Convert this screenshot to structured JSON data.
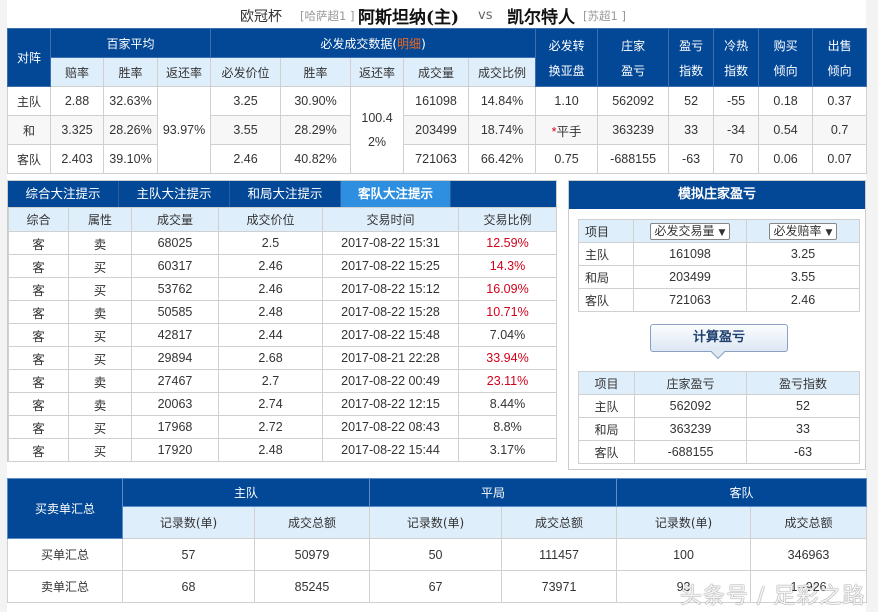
{
  "title": {
    "cup": "欧冠杯",
    "home_league": "[哈萨超1 ]",
    "home_team": "阿斯坦纳(主)",
    "vs": "vs",
    "away_team": "凯尔特人",
    "away_league": "[苏超1 ]"
  },
  "top_table": {
    "headers": {
      "matchup": "对阵",
      "avg_group": "百家平均",
      "avg_cols": [
        "赔率",
        "胜率",
        "返还率"
      ],
      "bf_group_prefix": "必发成交数据(",
      "bf_group_link": "明细",
      "bf_group_suffix": ")",
      "bf_cols": [
        "必发价位",
        "胜率",
        "返还率",
        "成交量",
        "成交比例"
      ],
      "convert": [
        "必发转",
        "换亚盘"
      ],
      "banker": [
        "庄家",
        "盈亏"
      ],
      "pl_index": [
        "盈亏",
        "指数"
      ],
      "hot_index": [
        "冷热",
        "指数"
      ],
      "buy": [
        "购买",
        "倾向"
      ],
      "sell": [
        "出售",
        "倾向"
      ]
    },
    "avg_return": "93.97%",
    "bf_return": [
      "100.4",
      "2%"
    ],
    "rows": [
      {
        "side": "主队",
        "odds": "2.88",
        "win": "32.63%",
        "bf_price": "3.25",
        "bf_win": "30.90%",
        "volume": "161098",
        "ratio": "14.84%",
        "asian": "1.10",
        "asian_star": "",
        "banker": "562092",
        "pl": "52",
        "hot": "-55",
        "buy": "0.18",
        "sell": "0.37"
      },
      {
        "side": "和",
        "odds": "3.325",
        "win": "28.26%",
        "bf_price": "3.55",
        "bf_win": "28.29%",
        "volume": "203499",
        "ratio": "18.74%",
        "asian": "平手",
        "asian_star": "*",
        "banker": "363239",
        "pl": "33",
        "hot": "-34",
        "buy": "0.54",
        "sell": "0.7"
      },
      {
        "side": "客队",
        "odds": "2.403",
        "win": "39.10%",
        "bf_price": "2.46",
        "bf_win": "40.82%",
        "volume": "721063",
        "ratio": "66.42%",
        "asian": "0.75",
        "asian_star": "",
        "banker": "-688155",
        "pl": "-63",
        "hot": "70",
        "buy": "0.06",
        "sell": "0.07"
      }
    ]
  },
  "tabs": {
    "items": [
      "综合大注提示",
      "主队大注提示",
      "和局大注提示",
      "客队大注提示"
    ],
    "active_index": 3
  },
  "trades": {
    "columns": [
      "综合",
      "属性",
      "成交量",
      "成交价位",
      "交易时间",
      "交易比例"
    ],
    "rows": [
      {
        "side": "客",
        "type": "卖",
        "volume": "68025",
        "price": "2.5",
        "time": "2017-08-22 15:31",
        "ratio": "12.59%",
        "highlight": true
      },
      {
        "side": "客",
        "type": "买",
        "volume": "60317",
        "price": "2.46",
        "time": "2017-08-22 15:25",
        "ratio": "14.3%",
        "highlight": true
      },
      {
        "side": "客",
        "type": "买",
        "volume": "53762",
        "price": "2.46",
        "time": "2017-08-22 15:12",
        "ratio": "16.09%",
        "highlight": true
      },
      {
        "side": "客",
        "type": "卖",
        "volume": "50585",
        "price": "2.48",
        "time": "2017-08-22 15:28",
        "ratio": "10.71%",
        "highlight": true
      },
      {
        "side": "客",
        "type": "买",
        "volume": "42817",
        "price": "2.44",
        "time": "2017-08-22 15:48",
        "ratio": "7.04%",
        "highlight": false
      },
      {
        "side": "客",
        "type": "买",
        "volume": "29894",
        "price": "2.68",
        "time": "2017-08-21 22:28",
        "ratio": "33.94%",
        "highlight": true
      },
      {
        "side": "客",
        "type": "卖",
        "volume": "27467",
        "price": "2.7",
        "time": "2017-08-22 00:49",
        "ratio": "23.11%",
        "highlight": true
      },
      {
        "side": "客",
        "type": "卖",
        "volume": "20063",
        "price": "2.74",
        "time": "2017-08-22 12:15",
        "ratio": "8.44%",
        "highlight": false
      },
      {
        "side": "客",
        "type": "买",
        "volume": "17968",
        "price": "2.72",
        "time": "2017-08-22 08:43",
        "ratio": "8.8%",
        "highlight": false
      },
      {
        "side": "客",
        "type": "买",
        "volume": "17920",
        "price": "2.48",
        "time": "2017-08-22 15:44",
        "ratio": "3.17%",
        "highlight": false
      }
    ],
    "highlight_color": "#d0021b"
  },
  "simulate": {
    "title": "模拟庄家盈亏",
    "input_table": {
      "item_label": "项目",
      "volume_select": "必发交易量",
      "odds_select": "必发赔率",
      "rows": [
        {
          "label": "主队",
          "volume": "161098",
          "odds": "3.25"
        },
        {
          "label": "和局",
          "volume": "203499",
          "odds": "3.55"
        },
        {
          "label": "客队",
          "volume": "721063",
          "odds": "2.46"
        }
      ]
    },
    "calc_button": "计算盈亏",
    "result_table": {
      "columns": [
        "项目",
        "庄家盈亏",
        "盈亏指数"
      ],
      "rows": [
        {
          "label": "主队",
          "banker": "562092",
          "index": "52"
        },
        {
          "label": "和局",
          "banker": "363239",
          "index": "33"
        },
        {
          "label": "客队",
          "banker": "-688155",
          "index": "-63"
        }
      ]
    }
  },
  "summary": {
    "title": "买卖单汇总",
    "groups": [
      "主队",
      "平局",
      "客队"
    ],
    "sub_cols": [
      "记录数(单)",
      "成交总额"
    ],
    "rows": [
      {
        "label": "买单汇总",
        "values": [
          "57",
          "50979",
          "50",
          "111457",
          "100",
          "346963"
        ]
      },
      {
        "label": "卖单汇总",
        "values": [
          "68",
          "85245",
          "67",
          "73971",
          "93",
          "1··926"
        ]
      }
    ]
  },
  "watermark": "头条号 / 足彩之路",
  "colors": {
    "header_blue": "#034797",
    "active_tab": "#2e8fe0",
    "subheader_bg": "#dfeefb",
    "link_orange": "#e8681f",
    "highlight_red": "#d0021b"
  }
}
